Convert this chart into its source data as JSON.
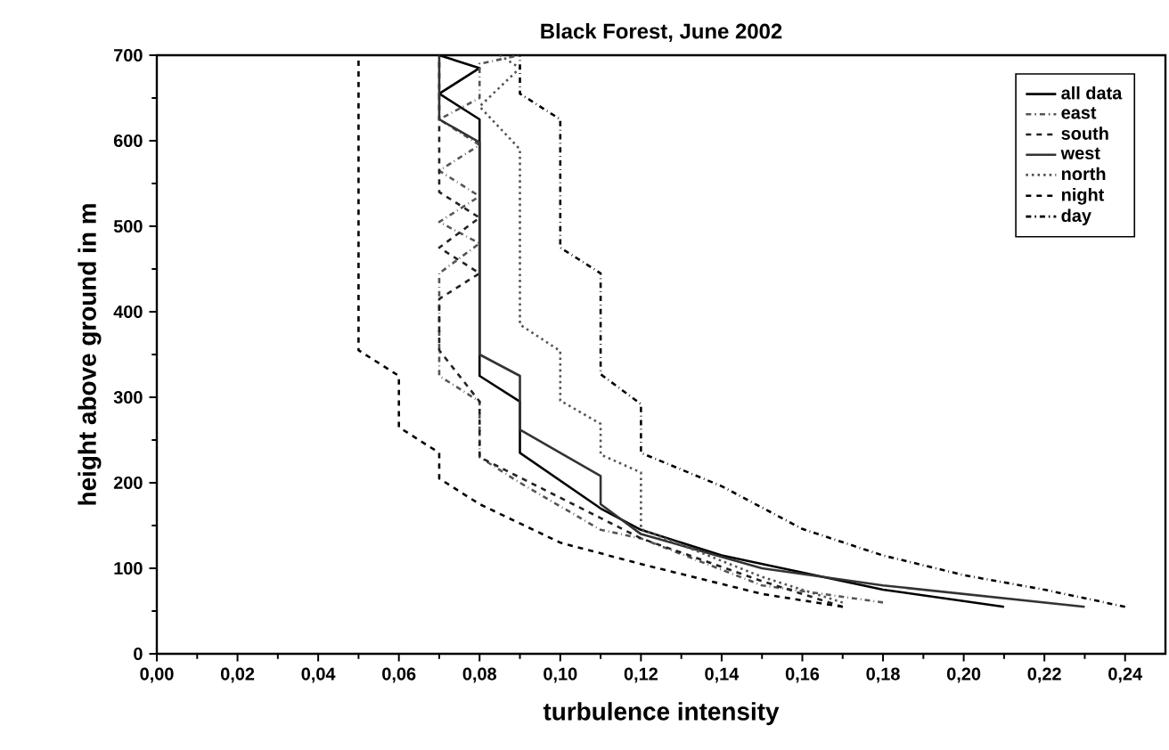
{
  "chart_data": {
    "type": "line",
    "title": "Black Forest, June 2002",
    "xlabel": "turbulence intensity",
    "ylabel": "height above ground in m",
    "xlim": [
      0,
      0.25
    ],
    "ylim": [
      0,
      700
    ],
    "xticks": [
      {
        "value": 0,
        "label": "0,00"
      },
      {
        "value": 0.02,
        "label": "0,02"
      },
      {
        "value": 0.04,
        "label": "0,04"
      },
      {
        "value": 0.06,
        "label": "0,06"
      },
      {
        "value": 0.08,
        "label": "0,08"
      },
      {
        "value": 0.1,
        "label": "0,10"
      },
      {
        "value": 0.12,
        "label": "0,12"
      },
      {
        "value": 0.14,
        "label": "0,14"
      },
      {
        "value": 0.16,
        "label": "0,16"
      },
      {
        "value": 0.18,
        "label": "0,18"
      },
      {
        "value": 0.2,
        "label": "0,20"
      },
      {
        "value": 0.22,
        "label": "0,22"
      },
      {
        "value": 0.24,
        "label": "0,24"
      }
    ],
    "yticks": [
      0,
      100,
      200,
      300,
      400,
      500,
      600,
      700
    ],
    "grid": false,
    "legend": "top right",
    "marker": "none",
    "series": [
      {
        "name": "all data",
        "color": "#000000",
        "line_style": "solid",
        "x": [
          0.21,
          0.18,
          0.16,
          0.14,
          0.12,
          0.11,
          0.09,
          0.09,
          0.08,
          0.08,
          0.07,
          0.08,
          0.07
        ],
        "values": [
          55,
          75,
          95,
          115,
          145,
          170,
          235,
          295,
          325,
          625,
          655,
          685,
          700
        ]
      },
      {
        "name": "east",
        "color": "#555555",
        "line_style": "dashdot",
        "x": [
          0.18,
          0.15,
          0.12,
          0.11,
          0.09,
          0.08,
          0.08,
          0.07,
          0.07,
          0.08,
          0.07,
          0.08,
          0.07,
          0.08,
          0.07,
          0.08,
          0.08,
          0.09
        ],
        "values": [
          60,
          80,
          135,
          145,
          200,
          230,
          295,
          325,
          445,
          480,
          505,
          535,
          565,
          595,
          625,
          650,
          690,
          700
        ]
      },
      {
        "name": "south",
        "color": "#222222",
        "line_style": "dashed",
        "x": [
          0.17,
          0.15,
          0.12,
          0.08,
          0.08,
          0.07,
          0.07,
          0.08,
          0.07,
          0.08,
          0.07,
          0.07
        ],
        "values": [
          55,
          85,
          135,
          230,
          295,
          355,
          415,
          445,
          475,
          510,
          540,
          700
        ]
      },
      {
        "name": "west",
        "color": "#333333",
        "line_style": "solid",
        "x": [
          0.23,
          0.18,
          0.15,
          0.12,
          0.11,
          0.11,
          0.09,
          0.09,
          0.08,
          0.08,
          0.07,
          0.07
        ],
        "values": [
          55,
          80,
          100,
          140,
          175,
          208,
          262,
          325,
          350,
          598,
          625,
          700
        ]
      },
      {
        "name": "north",
        "color": "#555555",
        "line_style": "dotted",
        "x": [
          0.17,
          0.15,
          0.12,
          0.12,
          0.11,
          0.11,
          0.1,
          0.1,
          0.09,
          0.09,
          0.08,
          0.09,
          0.085
        ],
        "values": [
          60,
          90,
          146,
          212,
          233,
          269,
          296,
          354,
          385,
          590,
          640,
          685,
          700
        ]
      },
      {
        "name": "night",
        "color": "#000000",
        "line_style": "dashed",
        "x": [
          0.17,
          0.15,
          0.12,
          0.1,
          0.08,
          0.07,
          0.07,
          0.06,
          0.06,
          0.05,
          0.05
        ],
        "values": [
          55,
          70,
          105,
          130,
          175,
          205,
          235,
          265,
          325,
          355,
          700
        ]
      },
      {
        "name": "day",
        "color": "#000000",
        "line_style": "dashdot",
        "x": [
          0.24,
          0.22,
          0.2,
          0.18,
          0.16,
          0.14,
          0.12,
          0.12,
          0.11,
          0.11,
          0.1,
          0.1,
          0.09,
          0.09
        ],
        "values": [
          55,
          75,
          92,
          115,
          146,
          196,
          235,
          292,
          327,
          445,
          475,
          625,
          655,
          700
        ]
      }
    ]
  }
}
